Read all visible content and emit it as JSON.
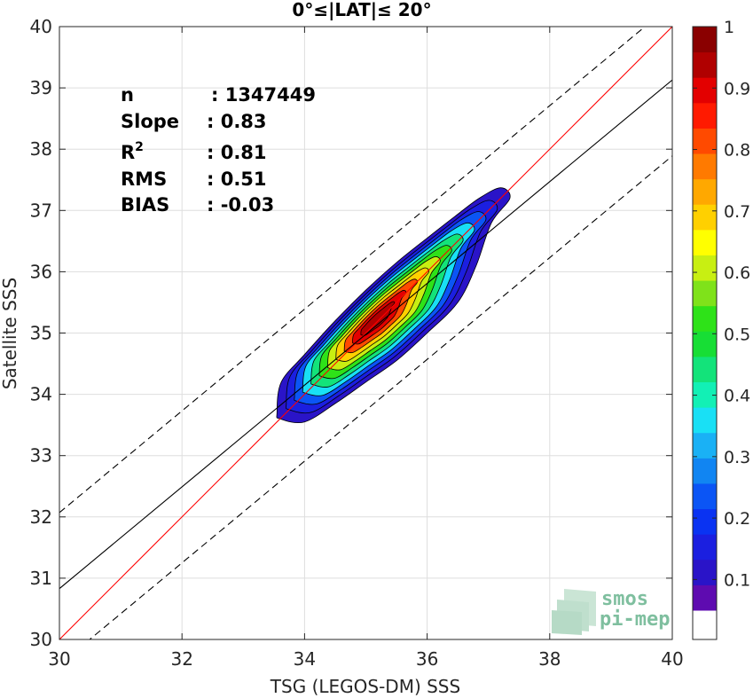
{
  "chart_data": {
    "type": "heatmap",
    "title": "0°≤|LAT|≤ 20°",
    "xlabel": "TSG (LEGOS-DM) SSS",
    "ylabel": "Satellite SSS",
    "xlim": [
      30,
      40
    ],
    "ylim": [
      30,
      40
    ],
    "xticks": [
      "30",
      "32",
      "34",
      "36",
      "38",
      "40"
    ],
    "yticks": [
      "30",
      "31",
      "32",
      "33",
      "34",
      "35",
      "36",
      "37",
      "38",
      "39",
      "40"
    ],
    "grid": true,
    "stats": [
      {
        "label": "n",
        "value": ": 1347449"
      },
      {
        "label": "Slope",
        "value": ": 0.83"
      },
      {
        "label": "R",
        "sup": "2",
        "value": ": 0.81"
      },
      {
        "label": "RMS",
        "value": ": 0.51"
      },
      {
        "label": "BIAS",
        "value": ": -0.03"
      }
    ],
    "lines": [
      {
        "kind": "identity",
        "color": "#ff0000",
        "points": [
          [
            30,
            30
          ],
          [
            40,
            40
          ]
        ]
      },
      {
        "kind": "regression",
        "color": "#000000",
        "points": [
          [
            30,
            30.83
          ],
          [
            40,
            39.13
          ]
        ]
      },
      {
        "kind": "upper-bound",
        "color": "#000000",
        "dashed": true,
        "points": [
          [
            30,
            32.07
          ],
          [
            40,
            40.37
          ]
        ]
      },
      {
        "kind": "lower-bound",
        "color": "#000000",
        "dashed": true,
        "points": [
          [
            30,
            29.59
          ],
          [
            40,
            37.89
          ]
        ]
      }
    ],
    "density": {
      "center": [
        35.15,
        35.2
      ],
      "outer_boundary": [
        [
          33.55,
          33.7
        ],
        [
          33.62,
          34.2
        ],
        [
          34.0,
          34.65
        ],
        [
          34.5,
          35.2
        ],
        [
          35.0,
          35.7
        ],
        [
          35.5,
          36.15
        ],
        [
          36.0,
          36.55
        ],
        [
          36.45,
          36.9
        ],
        [
          36.85,
          37.2
        ],
        [
          37.2,
          37.37
        ],
        [
          37.35,
          37.2
        ],
        [
          37.05,
          36.8
        ],
        [
          36.8,
          36.1
        ],
        [
          36.5,
          35.5
        ],
        [
          36.0,
          35.0
        ],
        [
          35.5,
          34.55
        ],
        [
          35.0,
          34.2
        ],
        [
          34.5,
          33.85
        ],
        [
          34.0,
          33.55
        ],
        [
          33.6,
          33.6
        ]
      ],
      "levels": [
        0.05,
        0.1,
        0.2,
        0.3,
        0.4,
        0.5,
        0.6,
        0.7,
        0.8,
        0.9,
        0.95
      ]
    },
    "colorbar": {
      "range": [
        0,
        1
      ],
      "ticks": [
        "0.1",
        "0.2",
        "0.3",
        "0.4",
        "0.5",
        "0.6",
        "0.7",
        "0.8",
        "0.9",
        "1"
      ],
      "bottom_color": "#ffffff",
      "colors": [
        "#5e0bb0",
        "#2a14c8",
        "#1b1fe0",
        "#0a33f2",
        "#0b55f5",
        "#1185f2",
        "#1ab1f5",
        "#19e0f5",
        "#12f0b5",
        "#13e37a",
        "#17de35",
        "#2ee218",
        "#7fe21a",
        "#c8ef12",
        "#ffff00",
        "#ffd000",
        "#ffa800",
        "#ff7a00",
        "#ff4a00",
        "#ff1a00",
        "#e30000",
        "#b00000",
        "#8a0000"
      ]
    }
  },
  "watermark": {
    "line1": "smos",
    "line2": "pi-mep",
    "color": "#7fbf9f"
  }
}
